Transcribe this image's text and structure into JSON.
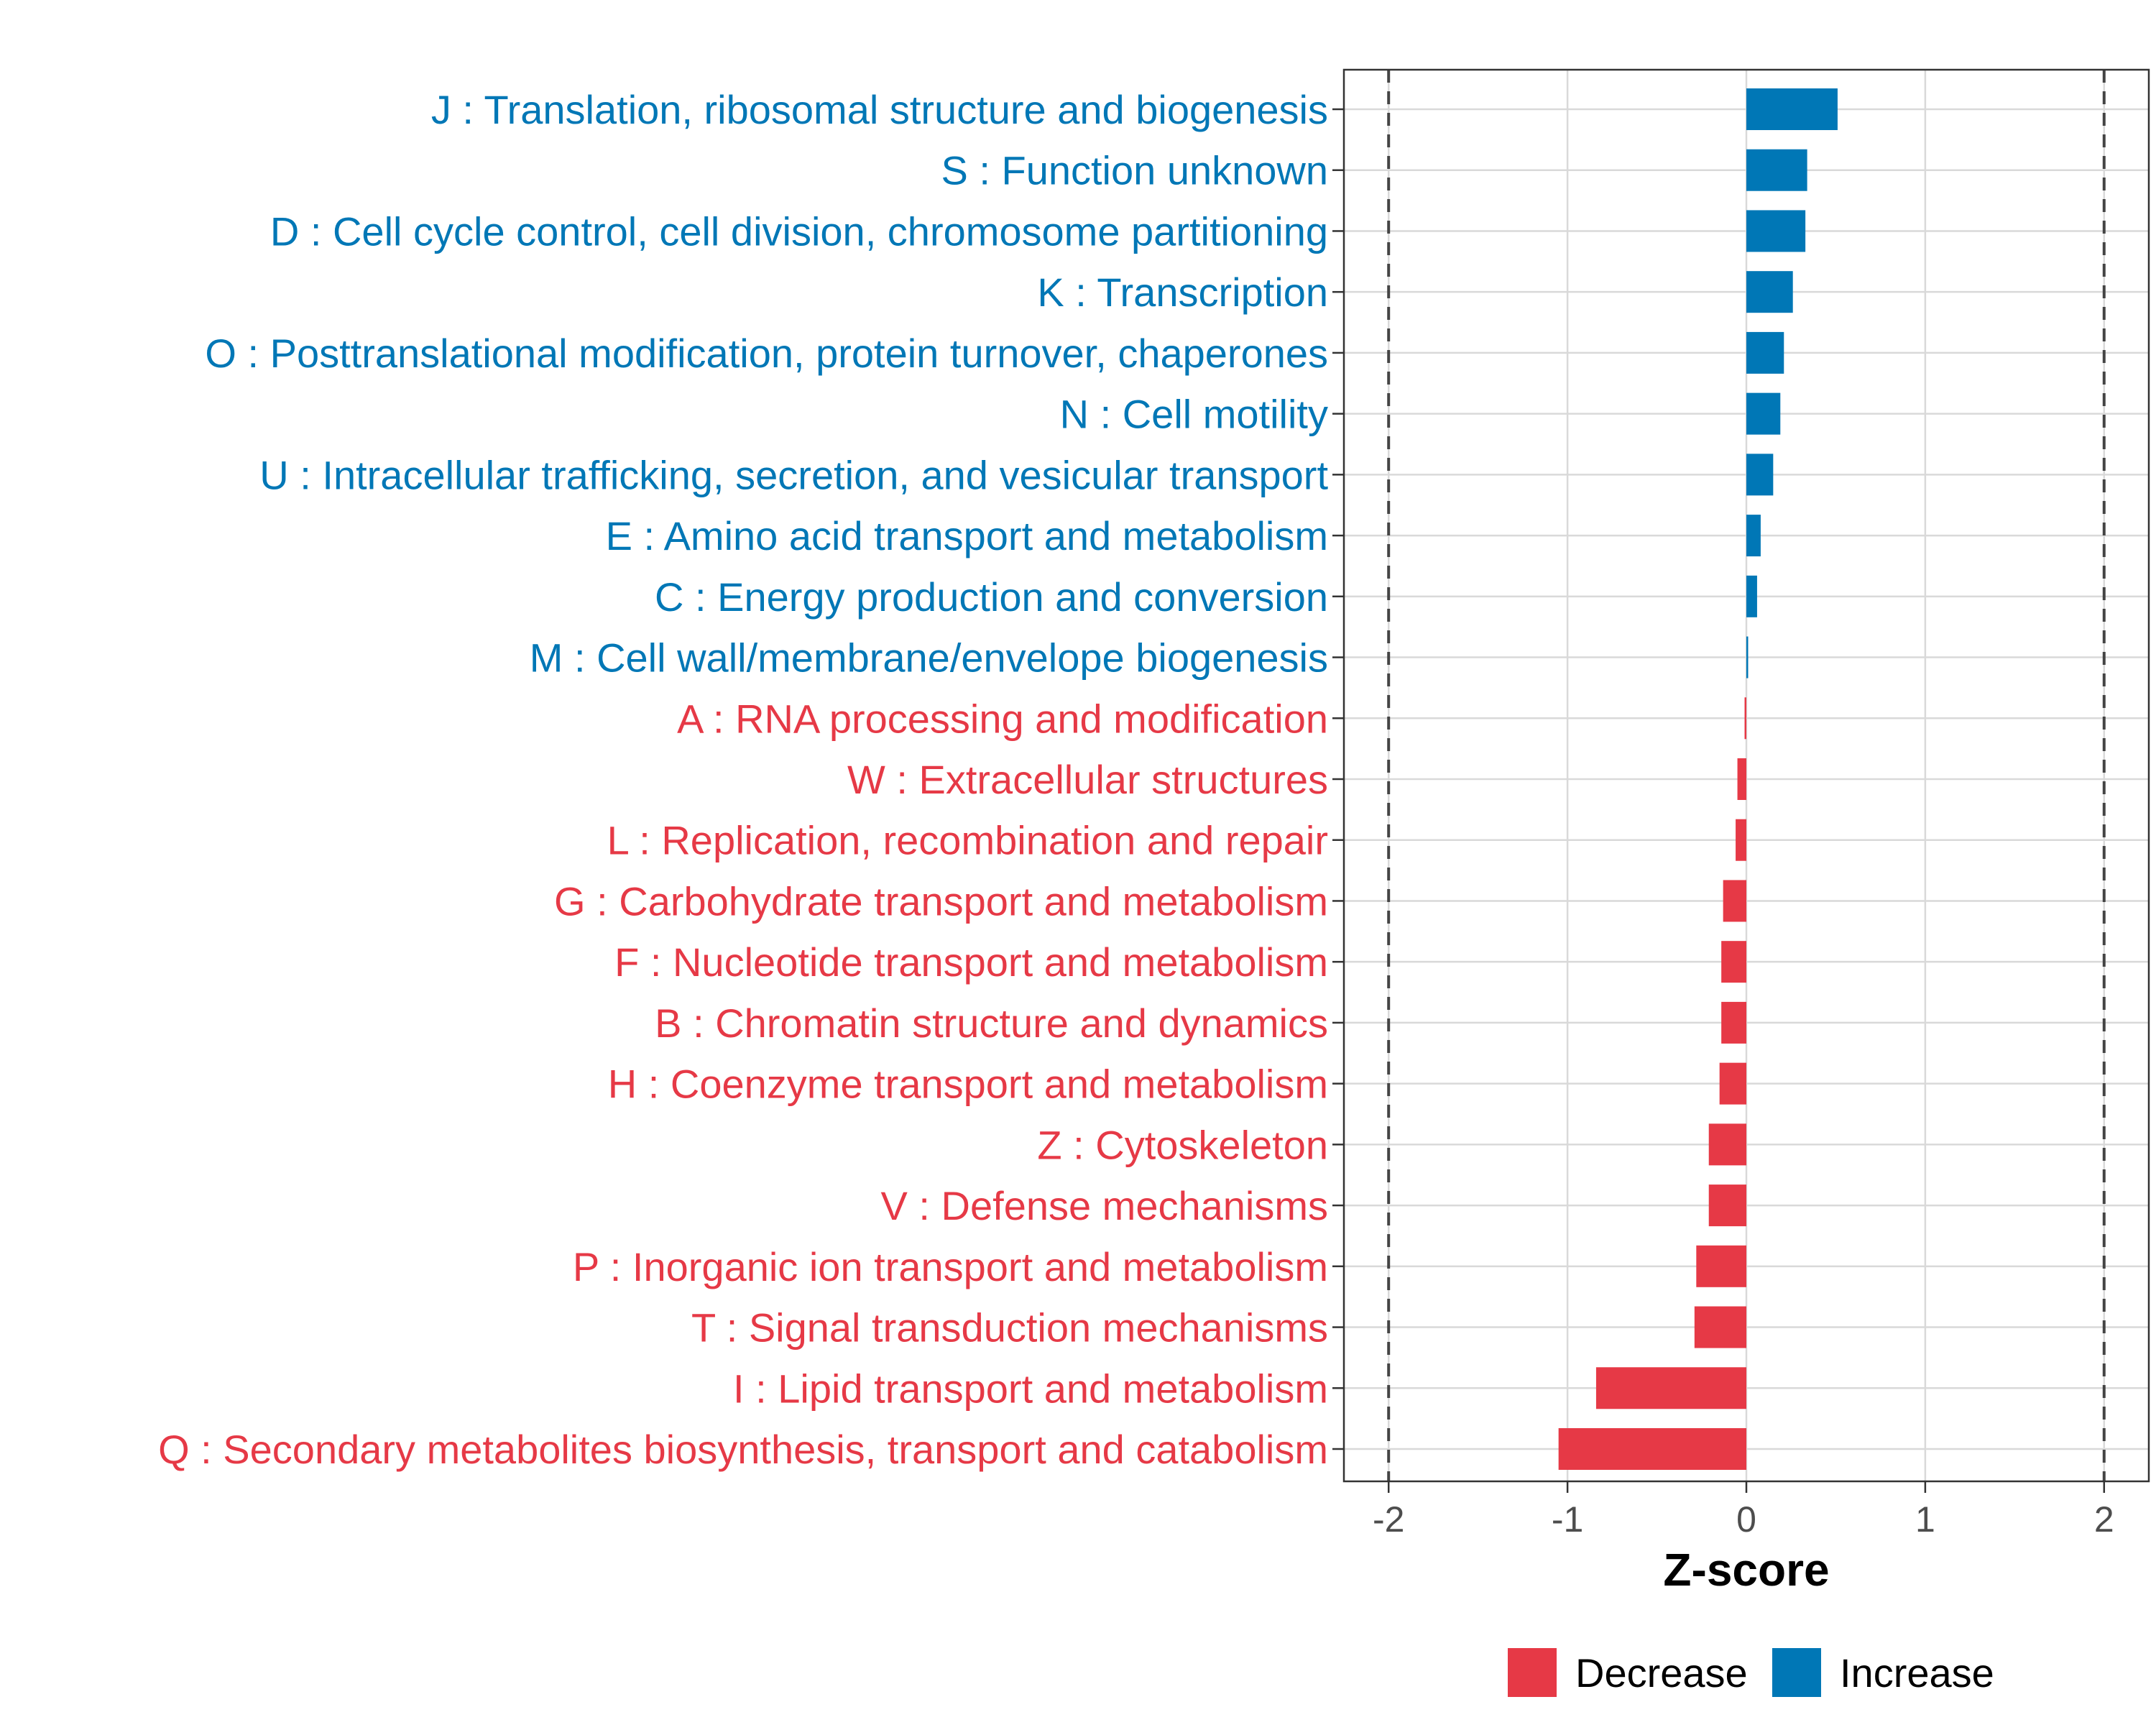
{
  "chart_data": {
    "type": "bar",
    "orientation": "horizontal",
    "title": "",
    "xlabel": "Z-score",
    "ylabel": "",
    "xlim": [
      -2.25,
      2.25
    ],
    "xticks": [
      -2,
      -1,
      0,
      1,
      2
    ],
    "xtick_labels": [
      "-2",
      "-1",
      "0",
      "1",
      "2"
    ],
    "reference_lines": [
      -2,
      2
    ],
    "grid": true,
    "legend_position": "bottom",
    "legend": [
      {
        "name": "Decrease",
        "color": "#E63946"
      },
      {
        "name": "Increase",
        "color": "#0077B6"
      }
    ],
    "categories": [
      "J : Translation, ribosomal structure and biogenesis",
      "S : Function unknown",
      "D : Cell cycle control, cell division, chromosome partitioning",
      "K : Transcription",
      "O : Posttranslational modification, protein turnover, chaperones",
      "N : Cell motility",
      "U : Intracellular trafficking, secretion, and vesicular transport",
      "E : Amino acid transport and metabolism",
      "C : Energy production and conversion",
      "M : Cell wall/membrane/envelope biogenesis",
      "A : RNA processing and modification",
      "W : Extracellular structures",
      "L : Replication, recombination and repair",
      "G : Carbohydrate transport and metabolism",
      "F : Nucleotide transport and metabolism",
      "B : Chromatin structure and dynamics",
      "H : Coenzyme transport and metabolism",
      "Z : Cytoskeleton",
      "V : Defense mechanisms",
      "P : Inorganic ion transport and metabolism",
      "T : Signal transduction mechanisms",
      "I : Lipid transport and metabolism",
      "Q : Secondary metabolites biosynthesis, transport and catabolism"
    ],
    "values": [
      0.51,
      0.34,
      0.33,
      0.26,
      0.21,
      0.19,
      0.15,
      0.08,
      0.06,
      0.01,
      -0.01,
      -0.05,
      -0.06,
      -0.13,
      -0.14,
      -0.14,
      -0.15,
      -0.21,
      -0.21,
      -0.28,
      -0.29,
      -0.84,
      -1.05
    ],
    "groups": [
      "Increase",
      "Increase",
      "Increase",
      "Increase",
      "Increase",
      "Increase",
      "Increase",
      "Increase",
      "Increase",
      "Increase",
      "Decrease",
      "Decrease",
      "Decrease",
      "Decrease",
      "Decrease",
      "Decrease",
      "Decrease",
      "Decrease",
      "Decrease",
      "Decrease",
      "Decrease",
      "Decrease",
      "Decrease"
    ]
  }
}
